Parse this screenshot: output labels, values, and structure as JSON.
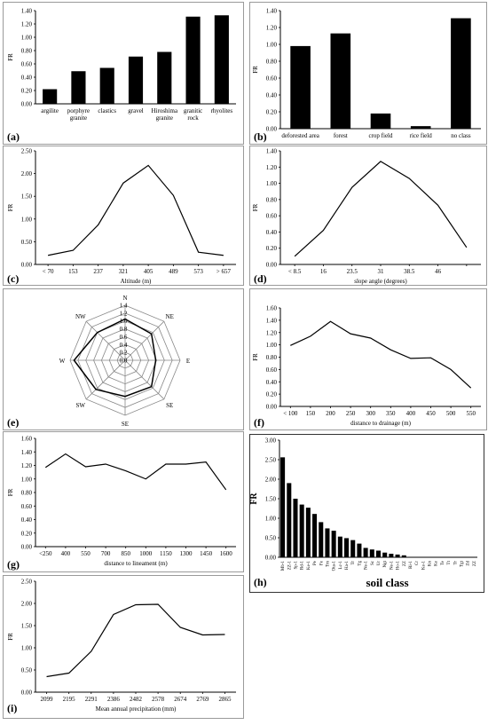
{
  "chart_data": [
    {
      "id": "a",
      "panel_label": "(a)",
      "type": "bar",
      "categories": [
        "argilite",
        "porphyre\ngranite",
        "clastics",
        "gravel",
        "Hiroshima\ngranite",
        "granitic\nrock",
        "rhyolites"
      ],
      "values": [
        0.22,
        0.49,
        0.54,
        0.71,
        0.78,
        1.31,
        1.33
      ],
      "ylabel": "FR",
      "xlabel": "",
      "ylim": [
        0,
        1.4
      ],
      "yticks": [
        "0.00",
        "0.20",
        "0.40",
        "0.60",
        "0.80",
        "1.00",
        "1.20",
        "1.40"
      ],
      "grid": false
    },
    {
      "id": "b",
      "panel_label": "(b)",
      "type": "bar",
      "categories": [
        "deforested area",
        "forest",
        "crop field",
        "rice field",
        "no class"
      ],
      "values": [
        0.98,
        1.13,
        0.18,
        0.03,
        1.31
      ],
      "ylabel": "FR",
      "xlabel": "",
      "ylim": [
        0,
        1.4
      ],
      "yticks": [
        "0.00",
        "0.20",
        "0.40",
        "0.60",
        "0.80",
        "1.00",
        "1.20",
        "1.40"
      ],
      "grid": false
    },
    {
      "id": "c",
      "panel_label": "(c)",
      "type": "line",
      "categories": [
        "< 70",
        "153",
        "237",
        "321",
        "405",
        "489",
        "573",
        "> 657"
      ],
      "values": [
        0.2,
        0.31,
        0.87,
        1.79,
        2.18,
        1.52,
        0.27,
        0.2
      ],
      "ylabel": "FR",
      "xlabel": "Altitude (m)",
      "ylim": [
        0,
        2.5
      ],
      "yticks": [
        "0.00",
        "0.50",
        "1.00",
        "1.50",
        "2.00",
        "2.50"
      ],
      "grid": false
    },
    {
      "id": "d",
      "panel_label": "(d)",
      "type": "line",
      "categories": [
        "< 8.5",
        "16",
        "23.5",
        "31",
        "38.5",
        "46",
        ""
      ],
      "values": [
        0.1,
        0.42,
        0.95,
        1.27,
        1.06,
        0.73,
        0.21
      ],
      "ylabel": "FR",
      "xlabel": "slope angle (degrees)",
      "ylim": [
        0,
        1.4
      ],
      "yticks": [
        "0.00",
        "0.20",
        "0.40",
        "0.60",
        "0.80",
        "1.00",
        "1.20",
        "1.40"
      ],
      "grid": false
    },
    {
      "id": "e",
      "panel_label": "(e)",
      "type": "radar",
      "categories": [
        "N",
        "NE",
        "E",
        "SE",
        "SE",
        "SW",
        "W",
        "NW"
      ],
      "values": [
        1.05,
        0.95,
        0.78,
        0.95,
        0.92,
        1.05,
        1.3,
        1.0
      ],
      "rmax": 1.4,
      "rticks": [
        "0.0",
        "0.2",
        "0.4",
        "0.6",
        "0.8",
        "1.0",
        "1.2",
        "1.4"
      ]
    },
    {
      "id": "f",
      "panel_label": "(f)",
      "type": "line",
      "categories": [
        "< 100",
        "150",
        "200",
        "250",
        "300",
        "350",
        "400",
        "450",
        "500",
        "550"
      ],
      "values": [
        0.99,
        1.14,
        1.38,
        1.18,
        1.11,
        0.92,
        0.78,
        0.79,
        0.6,
        0.3
      ],
      "ylabel": "FR",
      "xlabel": "distance to drainage (m)",
      "ylim": [
        0,
        1.6
      ],
      "yticks": [
        "0.00",
        "0.20",
        "0.40",
        "0.60",
        "0.80",
        "1.00",
        "1.20",
        "1.40",
        "1.60"
      ],
      "grid": false
    },
    {
      "id": "g",
      "panel_label": "(g)",
      "type": "line",
      "categories": [
        "<250",
        "400",
        "550",
        "700",
        "850",
        "1000",
        "1150",
        "1300",
        "1450",
        "1600"
      ],
      "values": [
        1.17,
        1.37,
        1.18,
        1.22,
        1.12,
        1.0,
        1.22,
        1.22,
        1.25,
        0.84
      ],
      "ylabel": "FR",
      "xlabel": "distance to lineament (m)",
      "ylim": [
        0,
        1.6
      ],
      "yticks": [
        "0.00",
        "0.20",
        "0.40",
        "0.60",
        "0.80",
        "1.00",
        "1.20",
        "1.40",
        "1.60"
      ],
      "grid": false
    },
    {
      "id": "h",
      "panel_label": "(h)",
      "type": "bar",
      "categories": [
        "Mb-1",
        "ZZ-1",
        "Sp-1",
        "Rd-1",
        "Ke-1",
        "Pe",
        "Fe",
        "Tm",
        "Ota-1",
        "Lc-1",
        "Ha-1",
        "Tr",
        "Tg",
        "Ne-1",
        "Sc",
        "Ur",
        "Ngt",
        "Ne-1",
        "Ho-1",
        "ZZ",
        "Ri-1",
        "Cr",
        "Ke-1",
        "Kn",
        "Ke",
        "Te",
        "Tt",
        "Tr",
        "Tgt",
        "Zd",
        "ZZ"
      ],
      "values": [
        2.56,
        1.9,
        1.5,
        1.35,
        1.27,
        1.11,
        0.9,
        0.74,
        0.68,
        0.53,
        0.49,
        0.44,
        0.35,
        0.24,
        0.2,
        0.17,
        0.12,
        0.09,
        0.07,
        0.05,
        0,
        0,
        0,
        0,
        0,
        0,
        0,
        0,
        0,
        0,
        0
      ],
      "ylabel": "FR",
      "xlabel": "soil class",
      "ylim": [
        0,
        3.0
      ],
      "yticks": [
        "0.00",
        "0.50",
        "1.00",
        "1.50",
        "2.00",
        "2.50",
        "3.00"
      ],
      "grid": false
    },
    {
      "id": "i",
      "panel_label": "(i)",
      "type": "line",
      "categories": [
        "2099",
        "2195",
        "2291",
        "2386",
        "2482",
        "2578",
        "2674",
        "2769",
        "2865"
      ],
      "values": [
        0.35,
        0.43,
        0.92,
        1.75,
        1.97,
        1.98,
        1.46,
        1.29,
        1.3
      ],
      "ylabel": "FR",
      "xlabel": "Mean annual precipitation (mm)",
      "ylim": [
        0,
        2.5
      ],
      "yticks": [
        "0.00",
        "0.50",
        "1.00",
        "1.50",
        "2.00",
        "2.50"
      ],
      "grid": false
    }
  ]
}
